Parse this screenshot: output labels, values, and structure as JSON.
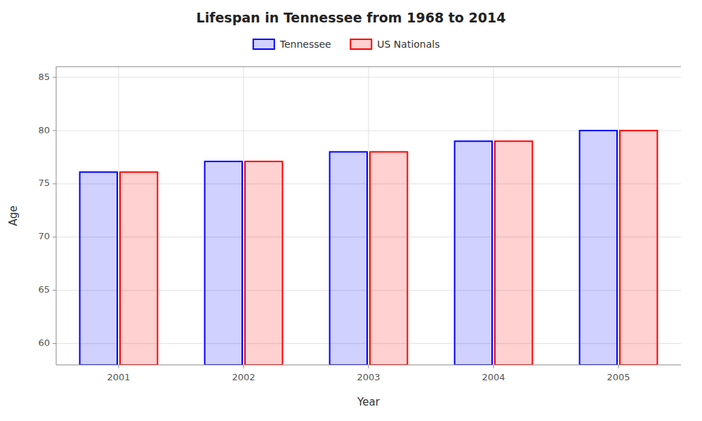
{
  "chart_data": {
    "type": "bar",
    "title": "Lifespan in Tennessee from 1968 to 2014",
    "xlabel": "Year",
    "ylabel": "Age",
    "categories": [
      "2001",
      "2002",
      "2003",
      "2004",
      "2005"
    ],
    "series": [
      {
        "name": "Tennessee",
        "color": "#0000ff",
        "values": [
          76.1,
          77.1,
          78.0,
          79.0,
          80.0
        ]
      },
      {
        "name": "US Nationals",
        "color": "#ff0000",
        "values": [
          76.1,
          77.1,
          78.0,
          79.0,
          80.0
        ]
      }
    ],
    "ylim": [
      58,
      86
    ],
    "yticks": [
      60,
      65,
      70,
      75,
      80,
      85
    ],
    "grid": true,
    "legend": "top"
  }
}
